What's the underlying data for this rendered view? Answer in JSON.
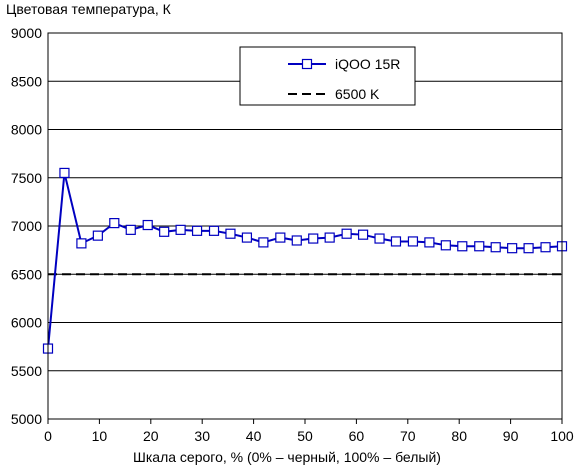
{
  "chart_data": {
    "type": "line",
    "title": "",
    "ylabel": "Цветовая температура, К",
    "xlabel": "Шкала серого, % (0% – черный, 100% – белый)",
    "xlim": [
      0,
      100
    ],
    "ylim": [
      5000,
      9000
    ],
    "xticks": [
      0,
      10,
      20,
      30,
      40,
      50,
      60,
      70,
      80,
      90,
      100
    ],
    "yticks": [
      5000,
      5500,
      6000,
      6500,
      7000,
      7500,
      8000,
      8500,
      9000
    ],
    "grid": "horizontal",
    "legend_position": "top-right",
    "series": [
      {
        "name": "iQOO 15R",
        "color": "#0000c0",
        "marker": "square",
        "x": [
          0,
          3.2,
          6.5,
          9.7,
          12.9,
          16.1,
          19.4,
          22.6,
          25.8,
          29.0,
          32.3,
          35.5,
          38.7,
          41.9,
          45.2,
          48.4,
          51.6,
          54.8,
          58.1,
          61.3,
          64.5,
          67.7,
          71.0,
          74.2,
          77.4,
          80.6,
          83.9,
          87.1,
          90.3,
          93.5,
          96.8,
          100
        ],
        "y": [
          5730,
          7550,
          6820,
          6900,
          7030,
          6960,
          7010,
          6940,
          6960,
          6950,
          6950,
          6920,
          6880,
          6830,
          6880,
          6850,
          6870,
          6880,
          6920,
          6910,
          6870,
          6840,
          6840,
          6830,
          6800,
          6790,
          6790,
          6780,
          6770,
          6770,
          6780,
          6790
        ]
      },
      {
        "name": "6500 K",
        "color": "#000000",
        "style": "dashed",
        "x": [
          0,
          100
        ],
        "y": [
          6500,
          6500
        ]
      }
    ]
  }
}
